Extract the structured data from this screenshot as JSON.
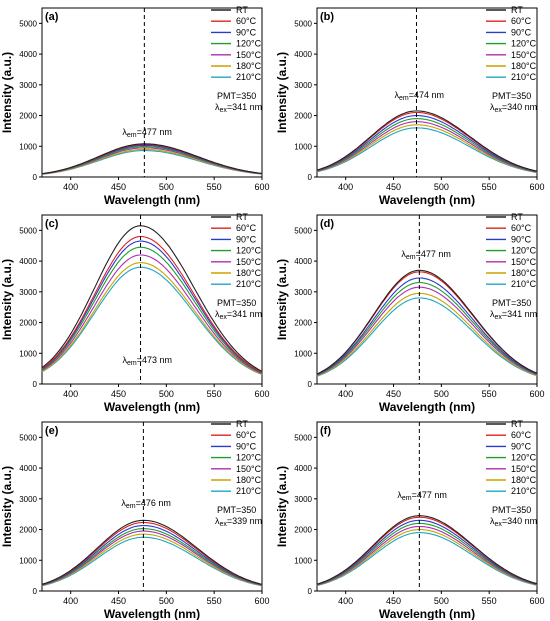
{
  "figure": {
    "shared": {
      "type": "line",
      "xlabel": "Wavelength (nm)",
      "ylabel": "Intensity (a.u.)",
      "xlim": [
        370,
        600
      ],
      "ylim": [
        0,
        5500
      ],
      "xticks": [
        400,
        450,
        500,
        550,
        600
      ],
      "yticks": [
        0,
        1000,
        2000,
        3000,
        4000,
        5000
      ],
      "grid": false,
      "legend_position": "top-right",
      "series_names": [
        "RT",
        "60°C",
        "90°C",
        "120°C",
        "150°C",
        "180°C",
        "210°C"
      ],
      "series_colors": [
        "#222222",
        "#e0201e",
        "#2a3ad0",
        "#1f9e2c",
        "#b02cb2",
        "#c8a400",
        "#1fa6c4"
      ],
      "pmt_text": "PMT=350",
      "lambda_symbol": "λ",
      "em_sub": "em",
      "ex_sub": "ex"
    }
  },
  "chart_data": [
    {
      "panel": "(a)",
      "type": "line",
      "peak_nm": 477,
      "em_label": "=477 nm",
      "ex_label": "=341 nm",
      "series": [
        {
          "name": "RT",
          "peak": 1080
        },
        {
          "name": "60°C",
          "peak": 1060
        },
        {
          "name": "90°C",
          "peak": 1030
        },
        {
          "name": "120°C",
          "peak": 990
        },
        {
          "name": "150°C",
          "peak": 950
        },
        {
          "name": "180°C",
          "peak": 900
        },
        {
          "name": "210°C",
          "peak": 860
        }
      ]
    },
    {
      "panel": "(b)",
      "type": "line",
      "peak_nm": 474,
      "em_label": "=474 nm",
      "ex_label": "=340 nm",
      "series": [
        {
          "name": "RT",
          "peak": 2150
        },
        {
          "name": "60°C",
          "peak": 2100
        },
        {
          "name": "90°C",
          "peak": 2000
        },
        {
          "name": "120°C",
          "peak": 1900
        },
        {
          "name": "150°C",
          "peak": 1800
        },
        {
          "name": "180°C",
          "peak": 1700
        },
        {
          "name": "210°C",
          "peak": 1600
        }
      ]
    },
    {
      "panel": "(c)",
      "type": "line",
      "peak_nm": 473,
      "em_label": "=473 nm",
      "ex_label": "=341 nm",
      "series": [
        {
          "name": "RT",
          "peak": 5150
        },
        {
          "name": "60°C",
          "peak": 4800
        },
        {
          "name": "90°C",
          "peak": 4650
        },
        {
          "name": "120°C",
          "peak": 4450
        },
        {
          "name": "150°C",
          "peak": 4200
        },
        {
          "name": "180°C",
          "peak": 3950
        },
        {
          "name": "210°C",
          "peak": 3800
        }
      ]
    },
    {
      "panel": "(d)",
      "type": "line",
      "peak_nm": 477,
      "em_label": "=477 nm",
      "ex_label": "=341 nm",
      "series": [
        {
          "name": "RT",
          "peak": 3700
        },
        {
          "name": "60°C",
          "peak": 3650
        },
        {
          "name": "90°C",
          "peak": 3450
        },
        {
          "name": "120°C",
          "peak": 3300
        },
        {
          "name": "150°C",
          "peak": 3150
        },
        {
          "name": "180°C",
          "peak": 2950
        },
        {
          "name": "210°C",
          "peak": 2800
        }
      ]
    },
    {
      "panel": "(e)",
      "type": "line",
      "peak_nm": 476,
      "em_label": "=476 nm",
      "ex_label": "=339 nm",
      "series": [
        {
          "name": "RT",
          "peak": 2300
        },
        {
          "name": "60°C",
          "peak": 2230
        },
        {
          "name": "90°C",
          "peak": 2130
        },
        {
          "name": "120°C",
          "peak": 2030
        },
        {
          "name": "150°C",
          "peak": 1950
        },
        {
          "name": "180°C",
          "peak": 1850
        },
        {
          "name": "210°C",
          "peak": 1750
        }
      ]
    },
    {
      "panel": "(f)",
      "type": "line",
      "peak_nm": 477,
      "em_label": "=477 nm",
      "ex_label": "=340 nm",
      "series": [
        {
          "name": "RT",
          "peak": 2450
        },
        {
          "name": "60°C",
          "peak": 2400
        },
        {
          "name": "90°C",
          "peak": 2300
        },
        {
          "name": "120°C",
          "peak": 2200
        },
        {
          "name": "150°C",
          "peak": 2100
        },
        {
          "name": "180°C",
          "peak": 2000
        },
        {
          "name": "210°C",
          "peak": 1900
        }
      ]
    }
  ]
}
